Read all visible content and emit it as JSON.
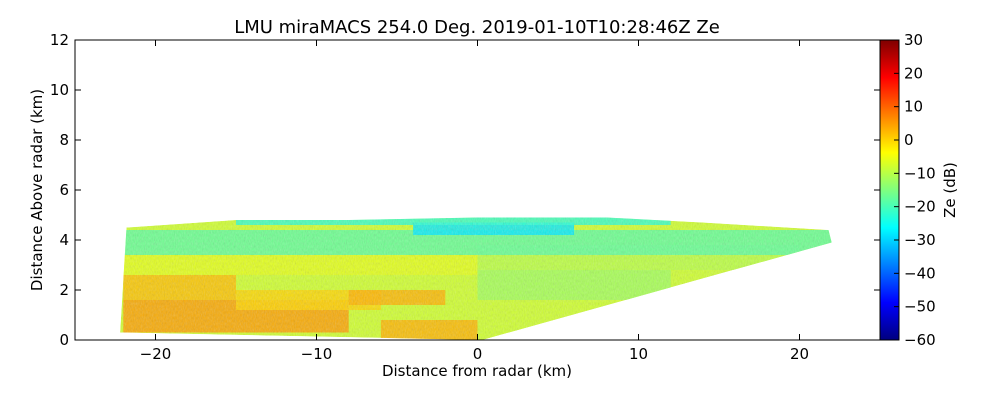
{
  "chart_data": {
    "type": "heatmap",
    "title": "LMU miraMACS 254.0 Deg. 2019-01-10T10:28:46Z  Ze",
    "xlabel": "Distance from radar (km)",
    "ylabel": "Distance Above radar  (km)",
    "xlim": [
      -25,
      25
    ],
    "ylim": [
      0,
      12
    ],
    "x_ticks": [
      -20,
      -10,
      0,
      10,
      20
    ],
    "y_ticks": [
      0,
      2,
      4,
      6,
      8,
      10,
      12
    ],
    "x_tick_labels": [
      "−20",
      "−10",
      "0",
      "10",
      "20"
    ],
    "y_tick_labels": [
      "0",
      "2",
      "4",
      "6",
      "8",
      "10",
      "12"
    ],
    "grid": false,
    "colormap": "jet",
    "colorbar": {
      "label": "Ze (dB)",
      "range": [
        -60,
        30
      ],
      "ticks": [
        30,
        20,
        10,
        0,
        -10,
        -20,
        -30,
        -40,
        -50,
        -60
      ],
      "tick_labels": [
        "30",
        "20",
        "10",
        "0",
        "−10",
        "−20",
        "−30",
        "−40",
        "−50",
        "−60"
      ]
    },
    "echo_region": {
      "outline_km": [
        [
          -22.2,
          0.3
        ],
        [
          -21.8,
          4.5
        ],
        [
          -15,
          4.8
        ],
        [
          -8,
          4.8
        ],
        [
          0,
          4.9
        ],
        [
          8,
          4.9
        ],
        [
          14,
          4.7
        ],
        [
          21.8,
          4.4
        ],
        [
          22,
          3.9
        ],
        [
          0.3,
          0.0
        ],
        [
          -22.2,
          0.3
        ]
      ],
      "cells": [
        {
          "x": [
            -22,
            -8
          ],
          "y": [
            0.3,
            1.6
          ],
          "ze_db": 5
        },
        {
          "x": [
            -22,
            -15
          ],
          "y": [
            1.6,
            2.6
          ],
          "ze_db": 2
        },
        {
          "x": [
            -15,
            -6
          ],
          "y": [
            1.2,
            2.0
          ],
          "ze_db": 0
        },
        {
          "x": [
            -8,
            -2
          ],
          "y": [
            1.4,
            2.0
          ],
          "ze_db": 3
        },
        {
          "x": [
            -6,
            0
          ],
          "y": [
            0.0,
            0.8
          ],
          "ze_db": 3
        },
        {
          "x": [
            -22,
            0
          ],
          "y": [
            2.6,
            3.4
          ],
          "ze_db": -6
        },
        {
          "x": [
            0,
            12
          ],
          "y": [
            1.6,
            2.8
          ],
          "ze_db": -12
        },
        {
          "x": [
            0,
            20
          ],
          "y": [
            2.8,
            3.8
          ],
          "ze_db": -10
        },
        {
          "x": [
            -22,
            22
          ],
          "y": [
            3.4,
            4.4
          ],
          "ze_db": -18
        },
        {
          "x": [
            -4,
            6
          ],
          "y": [
            4.2,
            4.7
          ],
          "ze_db": -28
        },
        {
          "x": [
            -15,
            12
          ],
          "y": [
            4.6,
            5.3
          ],
          "ze_db": -22
        }
      ],
      "base_ze_db": -8
    }
  }
}
